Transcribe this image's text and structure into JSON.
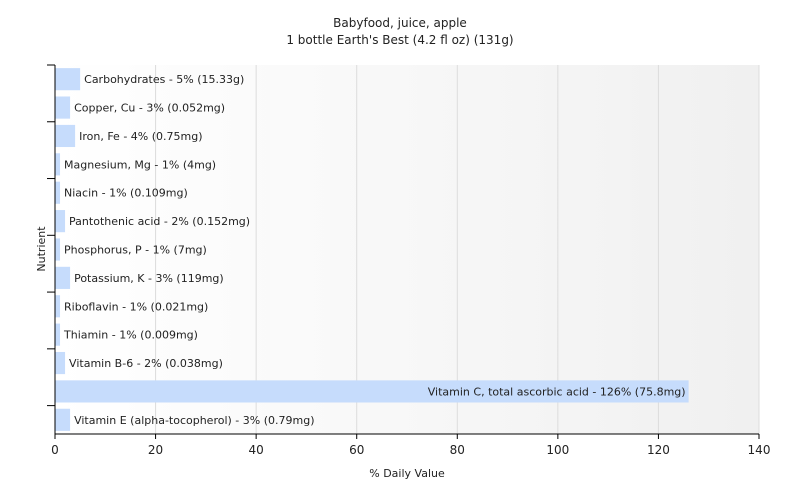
{
  "chart_data": {
    "type": "bar",
    "orientation": "horizontal",
    "title": "Babyfood, juice, apple",
    "subtitle": "1 bottle Earth's Best (4.2 fl oz) (131g)",
    "xlabel": "% Daily Value",
    "ylabel": "Nutrient",
    "xlim": [
      0,
      140
    ],
    "xticks": [
      0,
      20,
      40,
      60,
      80,
      100,
      120,
      140
    ],
    "grid": true,
    "bar_color": "#c6dcfc",
    "categories": [
      "Carbohydrates - 5% (15.33g)",
      "Copper, Cu - 3% (0.052mg)",
      "Iron, Fe - 4% (0.75mg)",
      "Magnesium, Mg - 1% (4mg)",
      "Niacin - 1% (0.109mg)",
      "Pantothenic acid - 2% (0.152mg)",
      "Phosphorus, P - 1% (7mg)",
      "Potassium, K - 3% (119mg)",
      "Riboflavin - 1% (0.021mg)",
      "Thiamin - 1% (0.009mg)",
      "Vitamin B-6 - 2% (0.038mg)",
      "Vitamin C, total ascorbic acid - 126% (75.8mg)",
      "Vitamin E (alpha-tocopherol) - 3% (0.79mg)"
    ],
    "values": [
      5,
      3,
      4,
      1,
      1,
      2,
      1,
      3,
      1,
      1,
      2,
      126,
      3
    ]
  }
}
